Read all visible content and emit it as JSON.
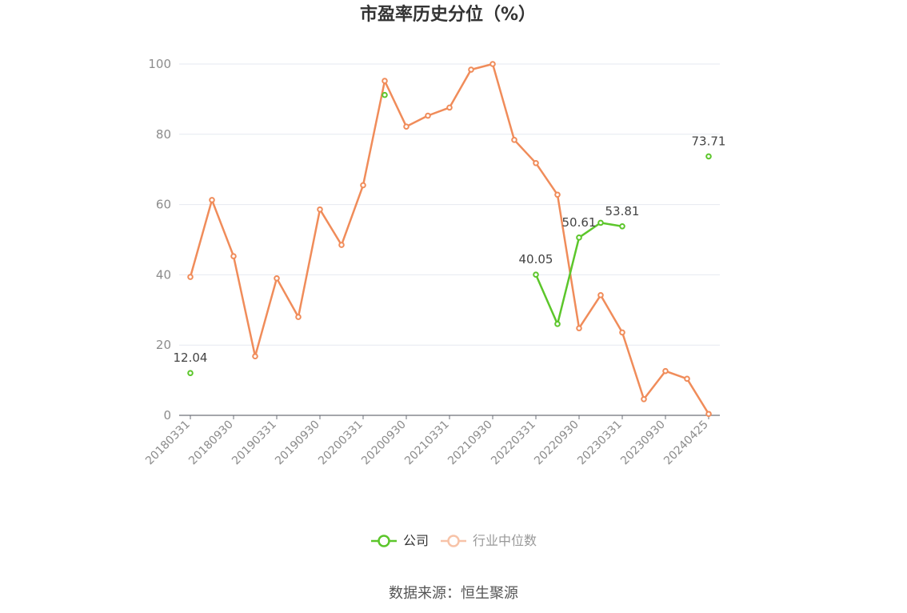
{
  "chart_data": {
    "type": "line",
    "title": "市盈率历史分位（%）",
    "source": "数据来源：恒生聚源",
    "x": [
      "20180331",
      "20180630",
      "20180930",
      "20181231",
      "20190331",
      "20190630",
      "20190930",
      "20191231",
      "20200331",
      "20200630",
      "20200930",
      "20201231",
      "20210331",
      "20210630",
      "20210930",
      "20211231",
      "20220331",
      "20220630",
      "20220930",
      "20221231",
      "20230331",
      "20230630",
      "20230930",
      "20231231",
      "20240425"
    ],
    "xtick_labels": [
      "20180331",
      "20180930",
      "20190331",
      "20190930",
      "20200331",
      "20200930",
      "20210331",
      "20210930",
      "20220331",
      "20220930",
      "20230331",
      "20230930",
      "20240425"
    ],
    "ylim": [
      0,
      100
    ],
    "yticks": [
      0,
      20,
      40,
      60,
      80,
      100
    ],
    "grid": true,
    "legend_position": "bottom",
    "series": [
      {
        "name": "公司",
        "color": "#5cc62b",
        "values": [
          12.04,
          null,
          null,
          null,
          null,
          null,
          null,
          null,
          null,
          91.2,
          null,
          null,
          null,
          null,
          null,
          null,
          40.05,
          26.0,
          50.61,
          54.8,
          53.81,
          null,
          null,
          null,
          73.71
        ],
        "labels": {
          "0": "12.04",
          "16": "40.05",
          "18": "50.61",
          "20": "53.81",
          "24": "73.71"
        }
      },
      {
        "name": "行业中位数",
        "color": "#f08c5a",
        "values": [
          39.4,
          61.3,
          45.3,
          16.8,
          39.0,
          28.0,
          58.6,
          48.5,
          65.5,
          95.2,
          82.2,
          85.3,
          87.6,
          98.4,
          100.0,
          78.4,
          71.8,
          62.8,
          24.8,
          34.2,
          23.6,
          4.6,
          12.6,
          10.4,
          0.4
        ]
      }
    ]
  }
}
